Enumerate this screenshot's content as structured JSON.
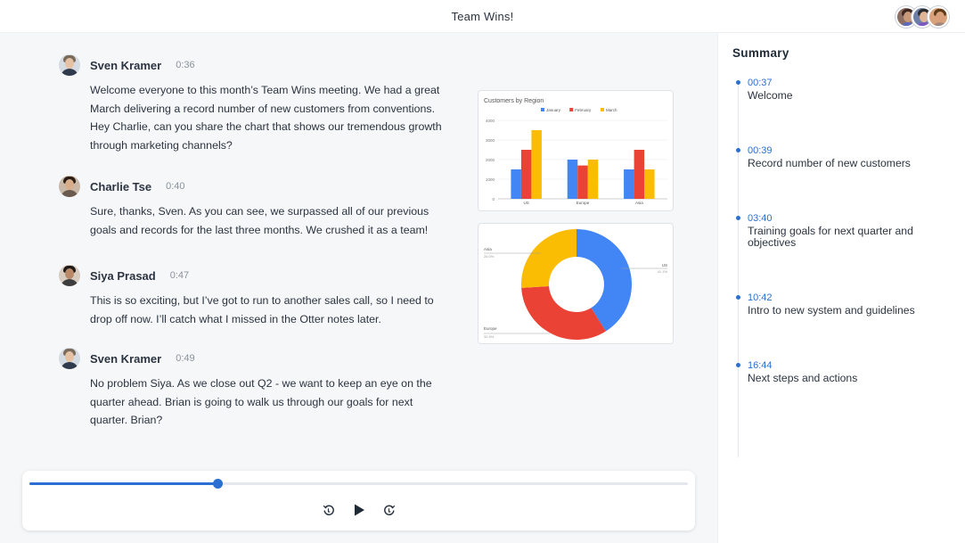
{
  "header": {
    "title": "Team Wins!",
    "participants": [
      "participant-1",
      "participant-2",
      "participant-3"
    ]
  },
  "transcript": [
    {
      "speaker": "Sven Kramer",
      "time": "0:36",
      "text": "Welcome everyone to this month’s Team Wins meeting. We had a great March delivering a record number of new customers from conventions. Hey Charlie, can you share the chart that shows our tremendous growth through marketing channels?"
    },
    {
      "speaker": "Charlie Tse",
      "time": "0:40",
      "text": "Sure, thanks, Sven. As you can see, we surpassed all of our previous goals and records for the last three months. We crushed it as a team!"
    },
    {
      "speaker": "Siya Prasad",
      "time": "0:47",
      "text": "This is so exciting, but I’ve got to run to another sales call, so I need to drop off now. I’ll catch what I missed in the Otter notes later."
    },
    {
      "speaker": "Sven Kramer",
      "time": "0:49",
      "text": "No problem Siya. As we close out Q2 - we want to keep an eye on the quarter ahead. Brian is going to walk us through our goals for next quarter. Brian?"
    }
  ],
  "chart_data": [
    {
      "type": "bar",
      "title": "Customers by Region",
      "categories": [
        "US",
        "Europe",
        "Asia"
      ],
      "series": [
        {
          "name": "January",
          "values": [
            1500,
            2000,
            1500
          ],
          "color": "#4285f4"
        },
        {
          "name": "February",
          "values": [
            2500,
            1700,
            2500
          ],
          "color": "#ea4335"
        },
        {
          "name": "March",
          "values": [
            3500,
            2000,
            1500
          ],
          "color": "#fbbc04"
        }
      ],
      "yticks": [
        "0",
        "1000",
        "2000",
        "3000",
        "4000"
      ],
      "ylim": [
        0,
        4000
      ],
      "grid": true,
      "legend": "top"
    },
    {
      "type": "pie",
      "slices": [
        {
          "label": "US",
          "value": 41.1,
          "pct": "41.1%",
          "color": "#4285f4"
        },
        {
          "label": "Europe",
          "value": 32.9,
          "pct": "32.9%",
          "color": "#ea4335"
        },
        {
          "label": "Asia",
          "value": 26.0,
          "pct": "26.0%",
          "color": "#fbbc04"
        }
      ],
      "donut": true
    }
  ],
  "player": {
    "progress": 0.285,
    "rewind_icon": "rewind-icon",
    "play_icon": "play-icon",
    "forward_icon": "forward-icon"
  },
  "summary": {
    "title": "Summary",
    "items": [
      {
        "time": "00:37",
        "text": "Welcome"
      },
      {
        "time": "00:39",
        "text": "Record number of new customers"
      },
      {
        "time": "03:40",
        "text": "Training goals for next quarter and objectives"
      },
      {
        "time": "10:42",
        "text": "Intro to new system and guidelines"
      },
      {
        "time": "16:44",
        "text": "Next steps and actions"
      }
    ]
  },
  "colors": {
    "accent": "#2a6fd1",
    "background": "#f6f7f9"
  }
}
